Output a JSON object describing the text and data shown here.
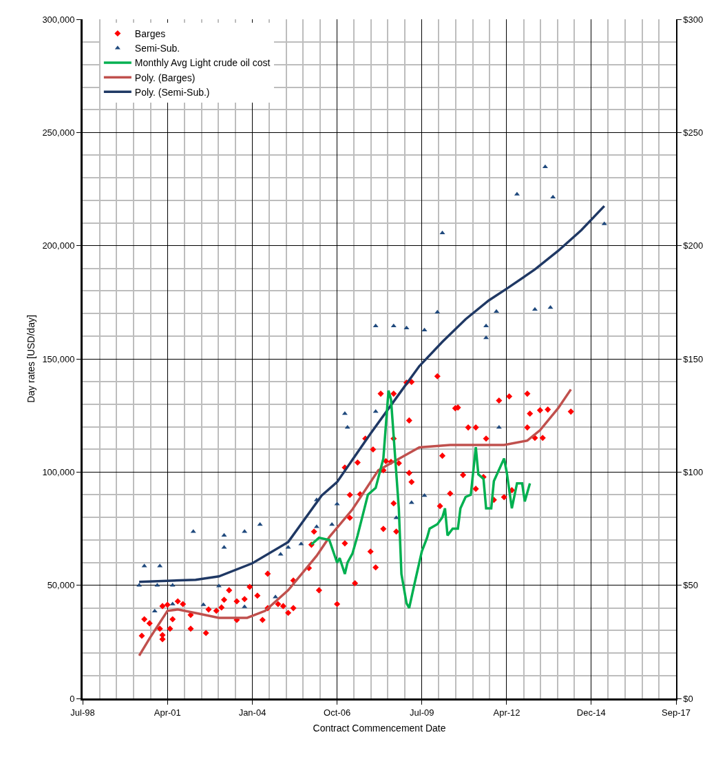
{
  "chart_data": {
    "type": "scatter",
    "xlabel": "Contract Commencement Date",
    "ylabel": "Day rates [USD/day]",
    "xlim": [
      "1998-07-01",
      "2017-09-28"
    ],
    "xticks": [
      {
        "value": "1998-07-01",
        "label": "Jul-98"
      },
      {
        "value": "2001-04-01",
        "label": "Apr-01"
      },
      {
        "value": "2004-01-01",
        "label": "Jan-04"
      },
      {
        "value": "2006-10-01",
        "label": "Oct-06"
      },
      {
        "value": "2009-07-01",
        "label": "Jul-09"
      },
      {
        "value": "2012-04-01",
        "label": "Apr-12"
      },
      {
        "value": "2014-12-28",
        "label": "Dec-14"
      },
      {
        "value": "2017-09-28",
        "label": "Sep-17"
      }
    ],
    "ylim": [
      0,
      300000
    ],
    "yticks": [
      {
        "value": 0,
        "label": "0"
      },
      {
        "value": 50000,
        "label": "50,000"
      },
      {
        "value": 100000,
        "label": "100,000"
      },
      {
        "value": 150000,
        "label": "150,000"
      },
      {
        "value": 200000,
        "label": "200,000"
      },
      {
        "value": 250000,
        "label": "250,000"
      },
      {
        "value": 300000,
        "label": "300,000"
      }
    ],
    "y2lim": [
      0,
      300
    ],
    "y2ticks": [
      {
        "value": 0,
        "label": "$0"
      },
      {
        "value": 50,
        "label": "$50"
      },
      {
        "value": 100,
        "label": "$100"
      },
      {
        "value": 150,
        "label": "$150"
      },
      {
        "value": 200,
        "label": "$200"
      },
      {
        "value": 250,
        "label": "$250"
      },
      {
        "value": 300,
        "label": "$300"
      }
    ],
    "grid": true,
    "legend": "top left",
    "series": [
      {
        "name": "Barges",
        "marker": "diamond",
        "color": "#ff0000",
        "x": [
          "2000-06",
          "2000-07",
          "2000-09",
          "2001-01",
          "2001-02",
          "2001-02",
          "2001-02",
          "2001-04",
          "2001-05",
          "2001-06",
          "2001-08",
          "2001-10",
          "2002-01",
          "2002-01",
          "2002-07",
          "2002-08",
          "2002-11",
          "2003-01",
          "2003-02",
          "2003-04",
          "2003-07",
          "2003-07",
          "2003-10",
          "2003-12",
          "2004-03",
          "2004-05",
          "2004-07",
          "2004-07",
          "2004-11",
          "2005-01",
          "2005-03",
          "2005-05",
          "2005-05",
          "2005-11",
          "2005-12",
          "2006-01",
          "2006-03",
          "2006-10",
          "2007-01",
          "2007-01",
          "2007-03",
          "2007-03",
          "2007-05",
          "2007-06",
          "2007-07",
          "2007-09",
          "2007-11",
          "2007-12",
          "2008-01",
          "2008-03",
          "2008-04",
          "2008-04",
          "2008-05",
          "2008-07",
          "2008-08",
          "2008-08",
          "2008-08",
          "2008-09",
          "2008-10",
          "2009-01",
          "2009-02",
          "2009-02",
          "2009-03",
          "2009-03",
          "2010-01",
          "2010-02",
          "2010-03",
          "2010-06",
          "2010-08",
          "2010-09",
          "2010-11",
          "2011-01",
          "2011-04",
          "2011-04",
          "2011-07",
          "2011-08",
          "2011-11",
          "2012-01",
          "2012-03",
          "2012-05",
          "2012-06",
          "2012-12",
          "2012-12",
          "2013-01",
          "2013-03",
          "2013-05",
          "2013-06",
          "2013-08",
          "2014-05"
        ],
        "values": [
          27700,
          35000,
          33200,
          30800,
          28000,
          26200,
          40800,
          41400,
          30800,
          35000,
          42900,
          41700,
          36900,
          30800,
          28900,
          39300,
          38700,
          40200,
          43600,
          47800,
          42900,
          34700,
          43900,
          49300,
          45400,
          34700,
          55100,
          39900,
          41700,
          40800,
          37800,
          39900,
          52100,
          57600,
          67900,
          73700,
          47800,
          41700,
          102000,
          68500,
          89900,
          79800,
          50900,
          104200,
          90200,
          114800,
          64900,
          110000,
          57900,
          134600,
          74900,
          100800,
          104800,
          104500,
          134600,
          114800,
          86200,
          73700,
          103900,
          139500,
          122800,
          99600,
          139800,
          95600,
          142300,
          85000,
          107200,
          90500,
          128200,
          128500,
          98700,
          119700,
          119700,
          92600,
          97800,
          114800,
          87700,
          131600,
          88900,
          133400,
          92000,
          134600,
          119700,
          125800,
          115100,
          127300,
          115100,
          127600,
          126700
        ]
      },
      {
        "name": "Semi-Sub.",
        "marker": "triangle",
        "color": "#1f497d",
        "x": [
          "2000-05",
          "2000-07",
          "2000-11",
          "2000-12",
          "2001-01",
          "2001-06",
          "2001-06",
          "2002-02",
          "2002-06",
          "2002-12",
          "2003-02",
          "2003-02",
          "2003-10",
          "2003-10",
          "2004-04",
          "2004-10",
          "2004-12",
          "2005-03",
          "2005-08",
          "2006-02",
          "2006-02",
          "2006-08",
          "2006-10",
          "2007-01",
          "2007-02",
          "2008-01",
          "2008-01",
          "2008-08",
          "2008-09",
          "2009-01",
          "2009-03",
          "2009-08",
          "2009-08",
          "2010-01",
          "2010-03",
          "2011-08",
          "2011-08",
          "2011-12",
          "2012-01",
          "2012-08",
          "2013-03",
          "2013-07",
          "2013-09",
          "2013-10",
          "2015-06"
        ],
        "values": [
          50000,
          58500,
          38600,
          50000,
          58500,
          50000,
          41700,
          73700,
          41400,
          49700,
          72000,
          66700,
          73700,
          40500,
          76800,
          44800,
          63700,
          66700,
          68200,
          87700,
          75800,
          76800,
          85900,
          125800,
          119700,
          126700,
          164500,
          164500,
          79800,
          163600,
          86500,
          162700,
          89600,
          170600,
          205600,
          164500,
          159300,
          170900,
          119700,
          222700,
          171800,
          234800,
          172700,
          221400,
          209600
        ]
      },
      {
        "name": "Monthly Avg Light crude oil cost",
        "type": "line",
        "axis": "y2",
        "marker": "none",
        "color": "#00b050",
        "x": [
          "2005-12",
          "2006-03",
          "2006-07",
          "2006-10",
          "2006-11",
          "2007-01",
          "2007-02",
          "2007-04",
          "2007-06",
          "2007-10",
          "2008-01",
          "2008-04",
          "2008-06",
          "2008-07",
          "2008-10",
          "2008-11",
          "2009-01",
          "2009-02",
          "2009-04",
          "2009-07",
          "2009-09",
          "2009-10",
          "2010-01",
          "2010-03",
          "2010-04",
          "2010-05",
          "2010-07",
          "2010-09",
          "2010-10",
          "2010-12",
          "2011-02",
          "2011-04",
          "2011-05",
          "2011-07",
          "2011-08",
          "2011-10",
          "2011-11",
          "2012-03",
          "2012-04",
          "2012-06",
          "2012-08",
          "2012-10",
          "2012-11",
          "2013-01"
        ],
        "values": [
          68,
          71,
          70,
          60,
          62,
          55,
          60,
          64,
          72,
          90,
          93,
          106,
          136,
          132,
          84,
          55,
          42,
          40,
          50,
          65,
          71,
          75,
          77,
          80,
          84,
          72,
          75,
          75,
          84,
          89,
          90,
          111,
          99,
          97,
          84,
          84,
          96,
          106,
          100,
          84,
          95,
          95,
          87,
          95
        ]
      },
      {
        "name": "Poly. (Barges)",
        "type": "line",
        "marker": "none",
        "color": "#c0504d",
        "x": [
          "2000-05",
          "2000-09",
          "2001-04",
          "2001-08",
          "2002-04",
          "2002-12",
          "2003-11",
          "2004-06",
          "2005-03",
          "2006-02",
          "2006-07",
          "2007-04",
          "2008-02",
          "2009-06",
          "2010-06",
          "2012-03",
          "2012-12",
          "2013-05",
          "2013-12",
          "2014-05"
        ],
        "values": [
          18900,
          26500,
          38700,
          39300,
          37500,
          35600,
          35600,
          38700,
          47800,
          63000,
          71300,
          83500,
          100800,
          110900,
          112000,
          112000,
          113900,
          118500,
          128200,
          136500
        ]
      },
      {
        "name": "Poly. (Semi-Sub.)",
        "type": "line",
        "marker": "none",
        "color": "#1f3864",
        "x": [
          "2000-05",
          "2002-03",
          "2002-12",
          "2004-01",
          "2005-03",
          "2006-04",
          "2006-10",
          "2007-11",
          "2008-10",
          "2009-06",
          "2010-03",
          "2010-12",
          "2011-09",
          "2012-04",
          "2013-03",
          "2013-12",
          "2014-09",
          "2015-06"
        ],
        "values": [
          51500,
          52400,
          53900,
          59700,
          69100,
          89600,
          95600,
          117000,
          134300,
          146800,
          157500,
          167500,
          175800,
          181000,
          189500,
          197700,
          206800,
          217500
        ]
      }
    ]
  }
}
